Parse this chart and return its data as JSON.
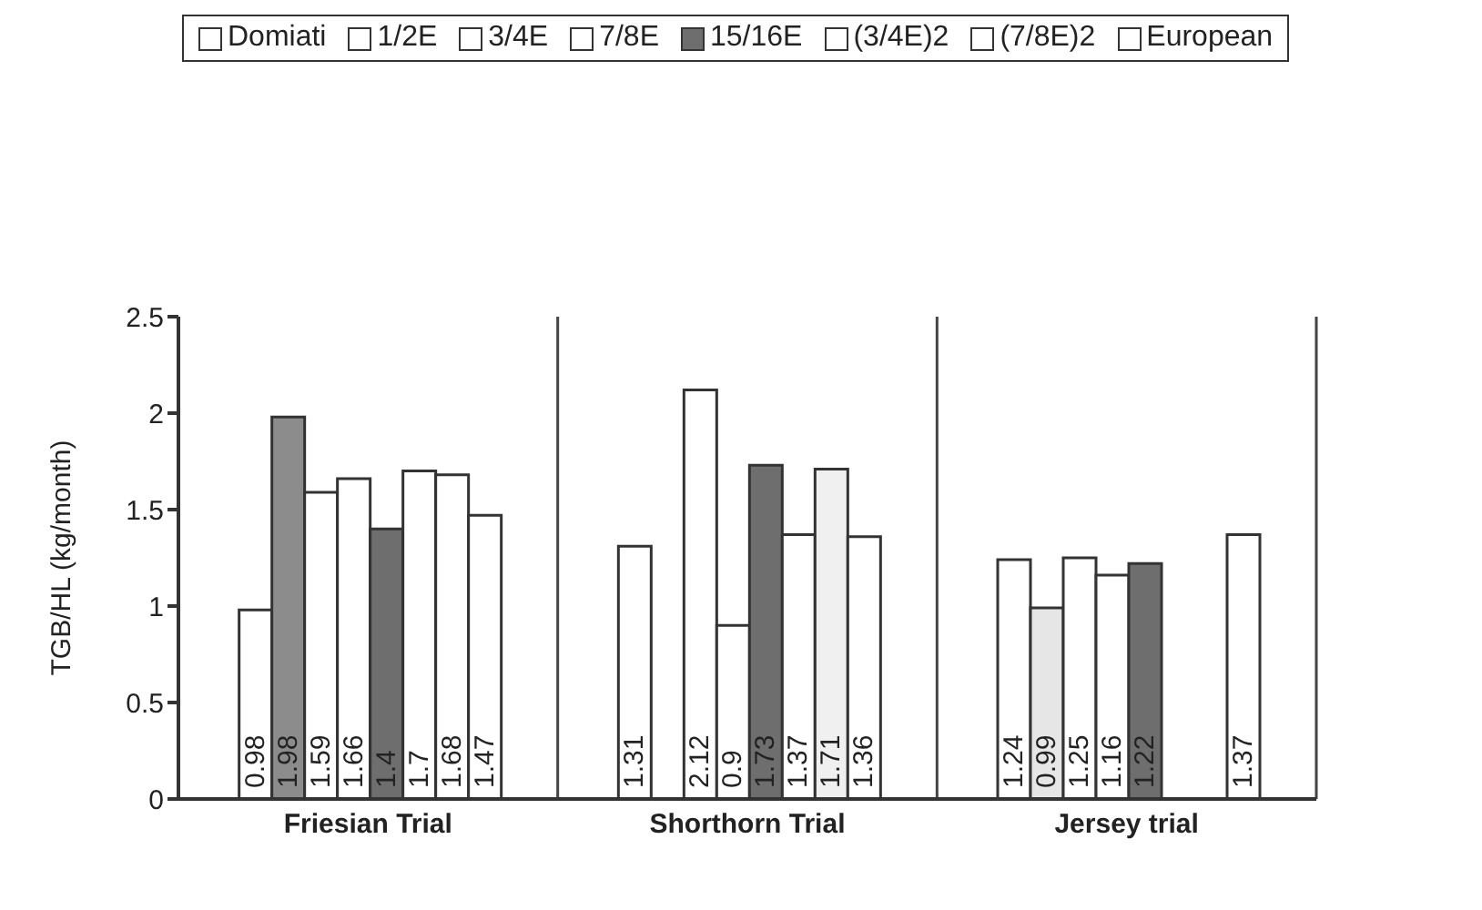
{
  "chart_data": {
    "type": "bar",
    "ylabel": "TGB/HL (kg/month)",
    "categories": [
      "Friesian Trial",
      "Shorthorn Trial",
      "Jersey trial"
    ],
    "series": [
      {
        "name": "Domiati",
        "color": "#ffffff",
        "values": [
          0.98,
          1.31,
          1.24
        ]
      },
      {
        "name": "1/2E",
        "color": "#ffffff",
        "colors": [
          "#8c8c8c",
          "#ffffff",
          "#e6e6e6"
        ],
        "values": [
          1.98,
          null,
          0.99
        ]
      },
      {
        "name": "3/4E",
        "color": "#ffffff",
        "values": [
          1.59,
          2.12,
          1.25
        ]
      },
      {
        "name": "7/8E",
        "color": "#ffffff",
        "values": [
          1.66,
          0.9,
          1.16
        ]
      },
      {
        "name": "15/16E",
        "color": "#6e6e6e",
        "values": [
          1.4,
          1.73,
          1.22
        ]
      },
      {
        "name": "(3/4E)2",
        "color": "#ffffff",
        "values": [
          1.7,
          1.37,
          null
        ]
      },
      {
        "name": "(7/8E)2",
        "color": "#ffffff",
        "colors": [
          "#ffffff",
          "#f0f0f0",
          "#ffffff"
        ],
        "values": [
          1.68,
          1.71,
          null
        ]
      },
      {
        "name": "European",
        "color": "#ffffff",
        "values": [
          1.47,
          1.36,
          1.37
        ]
      }
    ],
    "ylim": [
      0,
      2.5
    ],
    "yticks": [
      0,
      0.5,
      1,
      1.5,
      2,
      2.5
    ],
    "grid": "x",
    "legend": "top",
    "data_labels": true
  }
}
